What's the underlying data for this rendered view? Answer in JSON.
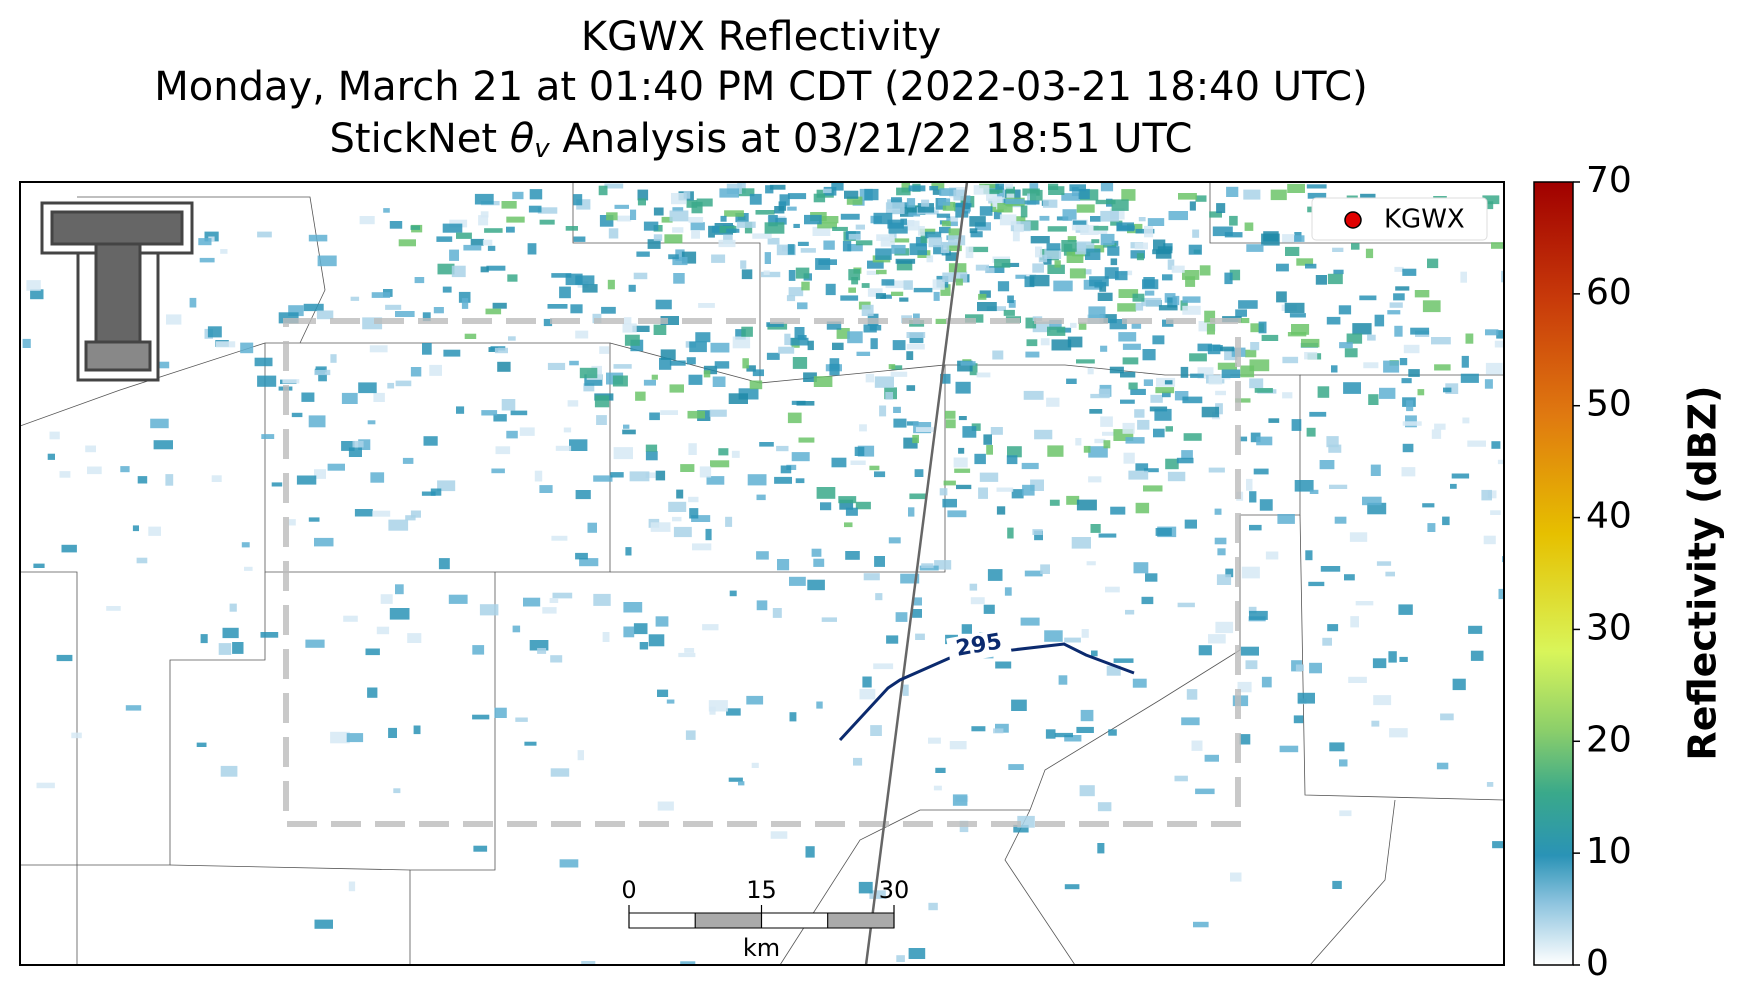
{
  "title": {
    "line_1": "KGWX Reflectivity",
    "line_2": "Monday, March 21 at 01:40 PM CDT (2022-03-21 18:40 UTC)",
    "line_3": {
      "before": "StickNet ",
      "symbol": "θ",
      "subscript": "v",
      "after": " Analysis at 03/21/22 18:51 UTC"
    }
  },
  "map": {
    "legend": "KGWX",
    "contour_label": "295",
    "scale_bar": {
      "ticks": [
        0,
        15,
        30
      ],
      "unit": "km"
    }
  },
  "colorbar": {
    "label": "Reflectivity (dBZ)",
    "lim": [
      0,
      70
    ],
    "ticks": [
      0,
      10,
      20,
      30,
      40,
      50,
      60,
      70
    ]
  }
}
